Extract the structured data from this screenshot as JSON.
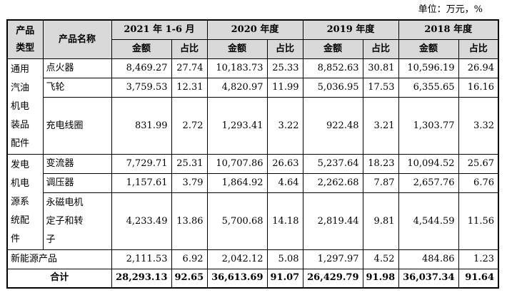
{
  "unit_label": "单位：万元，%",
  "header": {
    "category": "产品类型",
    "category_lines": [
      "产品",
      "类型"
    ],
    "product_name": "产品名称",
    "periods": [
      "2021 年 1-6 月",
      "2020 年度",
      "2019 年度",
      "2018 年度"
    ],
    "amount": "金额",
    "ratio": "占比"
  },
  "groups": [
    {
      "category_lines": [
        "通用",
        "汽油",
        "机电",
        "装品",
        "配件"
      ],
      "rows": [
        {
          "name": "点火器",
          "values": [
            "8,469.27",
            "27.74",
            "10,183.73",
            "25.33",
            "8,852.63",
            "30.81",
            "10,596.19",
            "26.94"
          ]
        },
        {
          "name": "飞轮",
          "values": [
            "3,759.53",
            "12.31",
            "4,820.97",
            "11.99",
            "5,036.95",
            "17.53",
            "6,355.65",
            "16.16"
          ]
        },
        {
          "name": "充电线圈",
          "values": [
            "831.99",
            "2.72",
            "1,293.41",
            "3.22",
            "922.48",
            "3.21",
            "1,303.77",
            "3.32"
          ]
        }
      ]
    },
    {
      "category_lines": [
        "发电",
        "机电",
        "源系",
        "统配",
        "件"
      ],
      "rows": [
        {
          "name": "变流器",
          "values": [
            "7,729.71",
            "25.31",
            "10,707.86",
            "26.63",
            "5,237.64",
            "18.23",
            "10,094.52",
            "25.67"
          ]
        },
        {
          "name": "调压器",
          "values": [
            "1,157.61",
            "3.79",
            "1,864.92",
            "4.64",
            "2,262.68",
            "7.87",
            "2,657.76",
            "6.76"
          ]
        },
        {
          "name_lines": [
            "永磁电机",
            "定子和转",
            "子"
          ],
          "values": [
            "4,233.49",
            "13.86",
            "5,700.68",
            "14.18",
            "2,819.44",
            "9.81",
            "4,544.59",
            "11.56"
          ]
        }
      ]
    }
  ],
  "new_energy": {
    "name": "新能源产品",
    "values": [
      "2,111.53",
      "6.92",
      "2,042.12",
      "5.08",
      "1,297.97",
      "4.52",
      "484.86",
      "1.23"
    ]
  },
  "total": {
    "label": "合计",
    "values": [
      "28,293.13",
      "92.65",
      "36,613.69",
      "91.07",
      "26,429.79",
      "91.98",
      "36,037.34",
      "91.64"
    ]
  }
}
